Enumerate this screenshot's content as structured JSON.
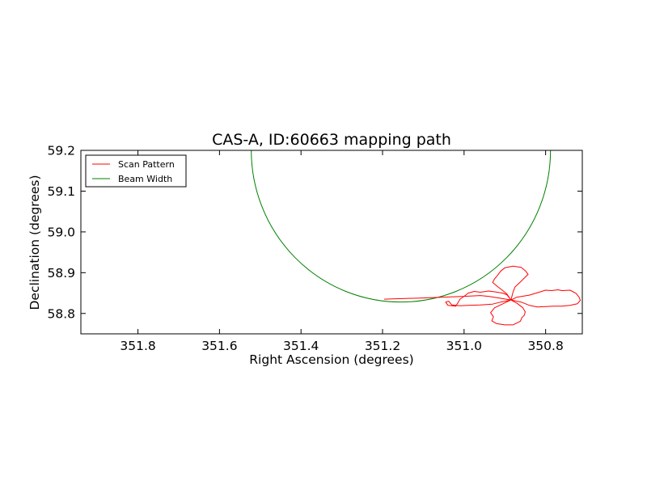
{
  "chart_data": {
    "type": "line",
    "title": "CAS-A, ID:60663 mapping path",
    "xlabel": "Right Ascension (degrees)",
    "ylabel": "Declination (degrees)",
    "x_inverted": true,
    "xlim": [
      351.94,
      350.71
    ],
    "ylim": [
      58.75,
      59.2
    ],
    "xticks": [
      351.8,
      351.6,
      351.4,
      351.2,
      351.0,
      350.8
    ],
    "xtick_labels": [
      "351.8",
      "351.6",
      "351.4",
      "351.2",
      "351.0",
      "350.8"
    ],
    "yticks": [
      58.8,
      58.9,
      59.0,
      59.1,
      59.2
    ],
    "ytick_labels": [
      "58.8",
      "58.9",
      "59.0",
      "59.1",
      "59.2"
    ],
    "grid": false,
    "legend_position": "top-left",
    "series": [
      {
        "name": "Scan Pattern",
        "color": "#ff0000",
        "points": [
          [
            351.196,
            58.835
          ],
          [
            351.1,
            58.838
          ],
          [
            351.0,
            58.842
          ],
          [
            350.96,
            58.844
          ],
          [
            350.94,
            58.842
          ],
          [
            350.915,
            58.838
          ],
          [
            350.885,
            58.833
          ],
          [
            350.87,
            58.84
          ],
          [
            350.84,
            58.845
          ],
          [
            350.82,
            58.851
          ],
          [
            350.8,
            58.857
          ],
          [
            350.785,
            58.856
          ],
          [
            350.77,
            58.858
          ],
          [
            350.76,
            58.856
          ],
          [
            350.74,
            58.857
          ],
          [
            350.725,
            58.849
          ],
          [
            350.718,
            58.84
          ],
          [
            350.715,
            58.832
          ],
          [
            350.722,
            58.824
          ],
          [
            350.74,
            58.82
          ],
          [
            350.76,
            58.818
          ],
          [
            350.78,
            58.818
          ],
          [
            350.8,
            58.817
          ],
          [
            350.82,
            58.816
          ],
          [
            350.84,
            58.82
          ],
          [
            350.86,
            58.828
          ],
          [
            350.885,
            58.833
          ],
          [
            350.87,
            58.825
          ],
          [
            350.856,
            58.814
          ],
          [
            350.85,
            58.804
          ],
          [
            350.852,
            58.796
          ],
          [
            350.858,
            58.79
          ],
          [
            350.862,
            58.781
          ],
          [
            350.88,
            58.772
          ],
          [
            350.9,
            58.772
          ],
          [
            350.92,
            58.775
          ],
          [
            350.932,
            58.782
          ],
          [
            350.928,
            58.792
          ],
          [
            350.935,
            58.802
          ],
          [
            350.925,
            58.814
          ],
          [
            350.9,
            58.826
          ],
          [
            350.885,
            58.833
          ],
          [
            350.91,
            58.828
          ],
          [
            350.93,
            58.823
          ],
          [
            350.96,
            58.821
          ],
          [
            350.99,
            58.82
          ],
          [
            351.01,
            58.819
          ],
          [
            351.03,
            58.821
          ],
          [
            351.038,
            58.83
          ],
          [
            351.045,
            58.828
          ],
          [
            351.04,
            58.82
          ],
          [
            351.02,
            58.818
          ],
          [
            351.01,
            58.835
          ],
          [
            351.0,
            58.842
          ],
          [
            350.99,
            58.85
          ],
          [
            350.975,
            58.854
          ],
          [
            350.96,
            58.852
          ],
          [
            350.94,
            58.855
          ],
          [
            350.925,
            58.853
          ],
          [
            350.905,
            58.85
          ],
          [
            350.895,
            58.846
          ],
          [
            350.885,
            58.833
          ],
          [
            350.895,
            58.848
          ],
          [
            350.905,
            58.856
          ],
          [
            350.918,
            58.866
          ],
          [
            350.93,
            58.876
          ],
          [
            350.925,
            58.885
          ],
          [
            350.917,
            58.895
          ],
          [
            350.91,
            58.904
          ],
          [
            350.9,
            58.912
          ],
          [
            350.88,
            58.916
          ],
          [
            350.86,
            58.913
          ],
          [
            350.849,
            58.904
          ],
          [
            350.843,
            58.896
          ],
          [
            350.85,
            58.889
          ],
          [
            350.862,
            58.877
          ],
          [
            350.875,
            58.865
          ],
          [
            350.88,
            58.852
          ],
          [
            350.885,
            58.833
          ]
        ]
      },
      {
        "name": "Beam Width",
        "color": "#008000",
        "center": [
          351.155,
          59.2
        ],
        "radius_x": 0.367,
        "radius_y": 0.372
      }
    ]
  }
}
